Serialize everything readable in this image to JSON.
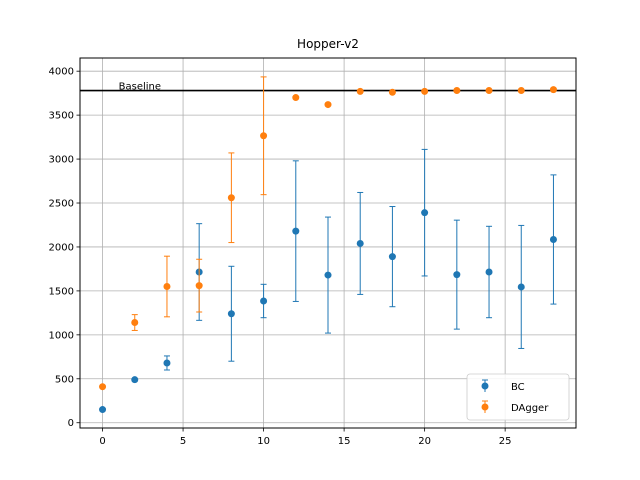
{
  "chart_data": {
    "type": "scatter",
    "title": "Hopper-v2",
    "xlabel": "",
    "ylabel": "",
    "xlim": [
      -1.4,
      29.4
    ],
    "ylim": [
      -60,
      4150
    ],
    "xticks": [
      0,
      5,
      10,
      15,
      20,
      25
    ],
    "yticks": [
      0,
      500,
      1000,
      1500,
      2000,
      2500,
      3000,
      3500,
      4000
    ],
    "grid": true,
    "legend_position": "lower-right",
    "baseline": {
      "label": "Baseline",
      "value": 3780,
      "color": "#000000"
    },
    "series": [
      {
        "name": "BC",
        "color": "#1f77b4",
        "x": [
          0,
          2,
          4,
          6,
          8,
          10,
          12,
          14,
          16,
          18,
          20,
          22,
          24,
          26,
          28
        ],
        "y": [
          150,
          490,
          680,
          1715,
          1240,
          1385,
          2180,
          1680,
          2040,
          1890,
          2390,
          1685,
          1715,
          1545,
          2085
        ],
        "err": [
          0,
          0,
          80,
          550,
          540,
          190,
          800,
          660,
          580,
          570,
          720,
          620,
          520,
          700,
          735
        ]
      },
      {
        "name": "DAgger",
        "color": "#ff7f0e",
        "x": [
          0,
          2,
          4,
          6,
          8,
          10,
          12,
          14,
          16,
          18,
          20,
          22,
          24,
          26,
          28
        ],
        "y": [
          410,
          1140,
          1550,
          1560,
          2560,
          3265,
          3700,
          3620,
          3770,
          3760,
          3770,
          3780,
          3780,
          3780,
          3790
        ],
        "err": [
          0,
          90,
          345,
          300,
          510,
          670,
          0,
          0,
          0,
          0,
          0,
          0,
          0,
          0,
          0
        ]
      }
    ]
  }
}
